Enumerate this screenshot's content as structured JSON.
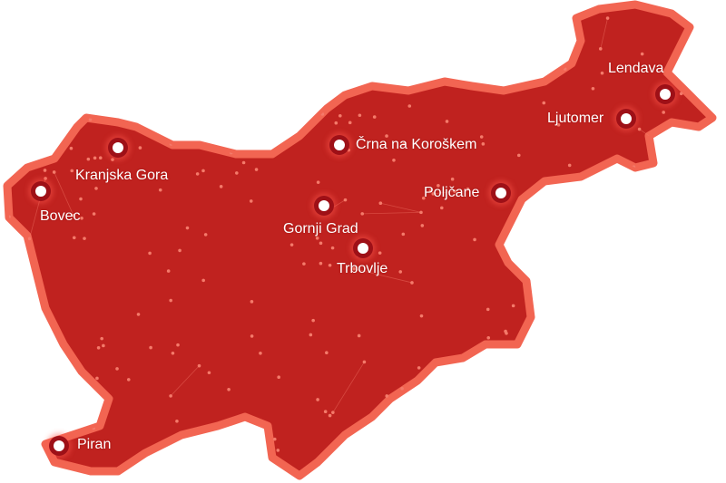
{
  "map": {
    "region": "Slovenia",
    "fill_color": "#c0221f",
    "border_color": "#f26552",
    "network_color": "#f47a6a",
    "cities": [
      {
        "name": "Kranjska Gora"
      },
      {
        "name": "Bovec"
      },
      {
        "name": "Črna na Koroškem"
      },
      {
        "name": "Gornji Grad"
      },
      {
        "name": "Trbovlje"
      },
      {
        "name": "Poljčane"
      },
      {
        "name": "Ljutomer"
      },
      {
        "name": "Lendava"
      },
      {
        "name": "Piran"
      }
    ]
  }
}
